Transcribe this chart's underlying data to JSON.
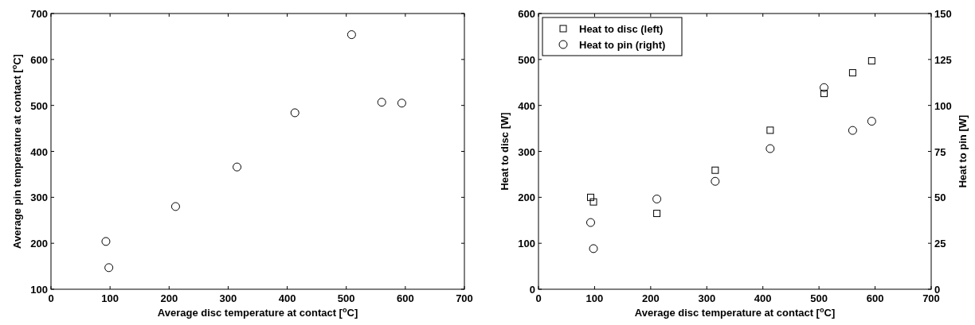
{
  "chart_data": [
    {
      "type": "scatter",
      "xlabel": "Average disc temperature at contact [$^{o}$C]",
      "ylabel": "Average pin temperature at contact [$^{o}$C]",
      "xlim": [
        0,
        700
      ],
      "xticks": [
        0,
        100,
        200,
        300,
        400,
        500,
        600,
        700
      ],
      "ylim": [
        100,
        700
      ],
      "yticks": [
        100,
        200,
        300,
        400,
        500,
        600,
        700
      ],
      "marker": "circle",
      "grid": false,
      "legend": false,
      "series": [
        {
          "color": "#000000",
          "x": [
            93,
            98,
            211,
            315,
            413,
            509,
            560,
            594
          ],
          "values": [
            204,
            147,
            280,
            366,
            484,
            654,
            507,
            505
          ]
        }
      ]
    },
    {
      "type": "scatter",
      "xlabel": "Average disc temperature at contact [$^{o}$C]",
      "ylabel": "Heat to disc [W]",
      "y2label": "Heat to pin [W]",
      "xlim": [
        0,
        700
      ],
      "xticks": [
        0,
        100,
        200,
        300,
        400,
        500,
        600,
        700
      ],
      "ylim": [
        0,
        600
      ],
      "yticks": [
        0,
        100,
        200,
        300,
        400,
        500,
        600
      ],
      "y2lim": [
        0,
        150
      ],
      "y2ticks": [
        0,
        25,
        50,
        75,
        100,
        125,
        150
      ],
      "grid": false,
      "legend": "top left",
      "series": [
        {
          "name": "Heat to disc (left)",
          "color": "#000000",
          "marker": "square",
          "x": [
            93,
            98,
            211,
            315,
            413,
            509,
            560,
            594
          ],
          "values": [
            200,
            190,
            165,
            259,
            346,
            426,
            471,
            497
          ]
        },
        {
          "name": "Heat to pin (right)",
          "color": "#000000",
          "marker": "circle",
          "axis": "y2",
          "x": [
            93,
            98,
            211,
            315,
            413,
            509,
            560,
            594
          ],
          "values": [
            36.3,
            22.1,
            49.1,
            58.7,
            76.5,
            109.7,
            86.4,
            91.4
          ]
        }
      ]
    }
  ]
}
